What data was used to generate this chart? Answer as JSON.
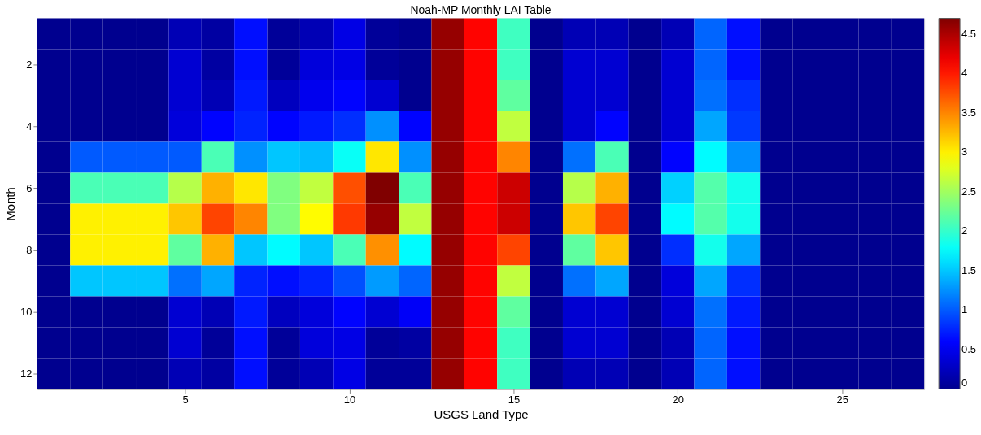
{
  "chart_data": {
    "type": "heatmap",
    "title": "Noah-MP Monthly LAI Table",
    "xlabel": "USGS Land Type",
    "ylabel": "Month",
    "categories": [
      null,
      null,
      null,
      null,
      "5",
      null,
      null,
      null,
      null,
      "10",
      null,
      null,
      null,
      null,
      "15",
      null,
      null,
      null,
      null,
      "20",
      null,
      null,
      null,
      null,
      "25",
      null,
      null
    ],
    "y_categories": [
      null,
      "2",
      null,
      "4",
      null,
      "6",
      null,
      "8",
      null,
      "10",
      null,
      "12"
    ],
    "cells": [
      [
        0,
        0,
        0,
        0,
        0.2,
        0.1,
        0.65,
        0.05,
        0.2,
        0.45,
        0.05,
        0,
        4.6,
        4.1,
        2.05,
        0,
        0.2,
        0.2,
        0,
        0.2,
        1.05,
        0.65,
        0,
        0,
        0,
        0,
        0
      ],
      [
        0,
        0,
        0,
        0,
        0.35,
        0.1,
        0.65,
        0.05,
        0.4,
        0.45,
        0.05,
        0,
        4.6,
        4.1,
        2.05,
        0,
        0.35,
        0.35,
        0,
        0.35,
        1.05,
        0.65,
        0,
        0,
        0,
        0,
        0
      ],
      [
        0,
        0,
        0,
        0,
        0.35,
        0.2,
        0.7,
        0.25,
        0.5,
        0.6,
        0.35,
        0,
        4.6,
        4.1,
        2.2,
        0,
        0.35,
        0.35,
        0,
        0.35,
        1.1,
        0.8,
        0,
        0,
        0,
        0,
        0
      ],
      [
        0,
        0,
        0,
        0,
        0.4,
        0.6,
        0.75,
        0.6,
        0.7,
        0.8,
        1.25,
        0.6,
        4.6,
        4.1,
        2.65,
        0,
        0.35,
        0.6,
        0,
        0.35,
        1.35,
        0.85,
        0,
        0,
        0,
        0,
        0
      ],
      [
        0,
        1.0,
        1.0,
        1.0,
        1.0,
        2.1,
        1.25,
        1.5,
        1.45,
        1.8,
        3.05,
        1.25,
        4.6,
        4.1,
        3.5,
        0,
        1.1,
        2.1,
        0,
        0.6,
        1.75,
        1.25,
        0,
        0,
        0,
        0,
        0
      ],
      [
        0,
        2.1,
        2.1,
        2.1,
        2.6,
        3.3,
        3.05,
        2.35,
        2.65,
        3.75,
        4.7,
        2.1,
        4.6,
        4.1,
        4.35,
        0,
        2.6,
        3.3,
        0,
        1.55,
        2.15,
        1.85,
        0,
        0,
        0,
        0,
        0
      ],
      [
        0,
        3.0,
        3.0,
        3.0,
        3.2,
        3.8,
        3.5,
        2.35,
        2.95,
        3.85,
        4.6,
        2.65,
        4.6,
        4.1,
        4.35,
        0,
        3.2,
        3.8,
        0,
        1.75,
        2.15,
        1.85,
        0,
        0,
        0,
        0,
        0
      ],
      [
        0,
        3.0,
        3.0,
        3.0,
        2.2,
        3.3,
        1.5,
        1.75,
        1.5,
        2.1,
        3.45,
        1.75,
        4.6,
        4.1,
        3.8,
        0,
        2.2,
        3.2,
        0,
        0.8,
        1.85,
        1.35,
        0,
        0,
        0,
        0,
        0
      ],
      [
        0,
        1.5,
        1.5,
        1.5,
        1.1,
        1.35,
        0.75,
        0.65,
        0.75,
        0.95,
        1.3,
        1.05,
        4.6,
        4.1,
        2.65,
        0,
        1.1,
        1.35,
        0,
        0.4,
        1.35,
        0.8,
        0,
        0,
        0,
        0,
        0
      ],
      [
        0,
        0,
        0,
        0,
        0.35,
        0.2,
        0.7,
        0.25,
        0.4,
        0.6,
        0.35,
        0.55,
        4.6,
        4.1,
        2.2,
        0,
        0.35,
        0.35,
        0,
        0.35,
        1.1,
        0.7,
        0,
        0,
        0,
        0,
        0
      ],
      [
        0,
        0,
        0,
        0,
        0.35,
        0.05,
        0.65,
        0.05,
        0.4,
        0.45,
        0.05,
        0.1,
        4.6,
        4.1,
        2.05,
        0,
        0.35,
        0.35,
        0,
        0.2,
        1.05,
        0.65,
        0,
        0,
        0,
        0,
        0
      ],
      [
        0,
        0,
        0,
        0,
        0.2,
        0.1,
        0.65,
        0.05,
        0.2,
        0.45,
        0.05,
        0.05,
        4.6,
        4.1,
        2.05,
        0,
        0.2,
        0.2,
        0,
        0.2,
        1.05,
        0.65,
        0,
        0,
        0,
        0,
        0
      ]
    ],
    "clim": [
      0,
      4.7
    ],
    "cticks": [
      0,
      0.5,
      1,
      1.5,
      2,
      2.5,
      3,
      3.5,
      4,
      4.5
    ]
  }
}
